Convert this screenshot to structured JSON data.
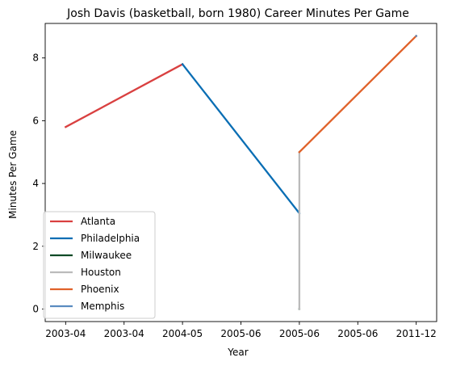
{
  "chart_data": {
    "type": "line",
    "title": "Josh Davis (basketball, born 1980) Career Minutes Per Game",
    "xlabel": "Year",
    "ylabel": "Minutes Per Game",
    "x_ticks": [
      "2003-04",
      "2003-04",
      "2004-05",
      "2005-06",
      "2005-06",
      "2005-06",
      "2011-12"
    ],
    "ylim": [
      -0.4,
      9.1
    ],
    "y_ticks": [
      0,
      2,
      4,
      6,
      8
    ],
    "grid": false,
    "legend_position": "lower-left",
    "series": [
      {
        "name": "Atlanta",
        "color": "#d94040",
        "points": [
          [
            0,
            5.8
          ],
          [
            2,
            7.8
          ]
        ]
      },
      {
        "name": "Philadelphia",
        "color": "#0a6eb4",
        "points": [
          [
            2,
            7.8
          ],
          [
            4,
            3.05
          ]
        ]
      },
      {
        "name": "Milwaukee",
        "color": "#0b4a26",
        "points": [
          [
            4,
            0.0
          ],
          [
            4,
            0.0
          ]
        ]
      },
      {
        "name": "Houston",
        "color": "#bbbbbb",
        "points": [
          [
            4,
            0.0
          ],
          [
            4,
            5.0
          ]
        ]
      },
      {
        "name": "Phoenix",
        "color": "#e0622a",
        "points": [
          [
            4,
            5.0
          ],
          [
            6,
            8.7
          ]
        ]
      },
      {
        "name": "Memphis",
        "color": "#5a8cc0",
        "points": [
          [
            6,
            8.7
          ],
          [
            6,
            8.7
          ]
        ]
      }
    ]
  }
}
